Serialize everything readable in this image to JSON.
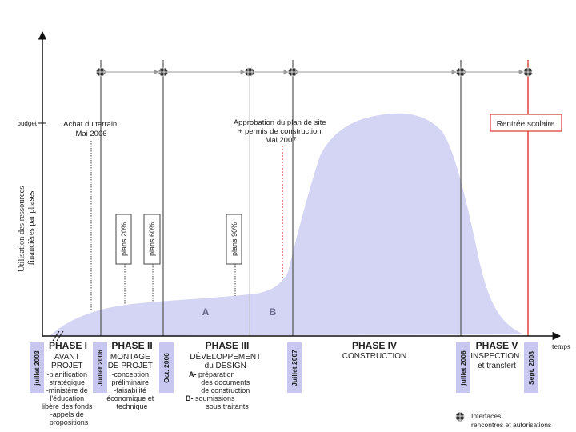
{
  "axes": {
    "y_label_line1": "Utilisation des ressources",
    "y_label_line2": "financières par phases",
    "x_label": "temps",
    "budget_label": "budget"
  },
  "milestones": [
    {
      "label": "juillet 2003"
    },
    {
      "label": "Juillet 2006"
    },
    {
      "label": "Oct. 2006"
    },
    {
      "label": "Juillet 2007"
    },
    {
      "label": "juillet 2008"
    },
    {
      "label": "Sept. 2008"
    }
  ],
  "phases": [
    {
      "title": "PHASE I",
      "lines": [
        "AVANT",
        "PROJET",
        "-planification",
        "stratégique",
        "-ministère de",
        "l'éducation",
        "libère des fonds",
        "-appels de",
        "propositions"
      ]
    },
    {
      "title": "PHASE II",
      "lines": [
        "MONTAGE",
        "DE PROJET",
        "-conception",
        "préliminaire",
        "-faisabilité",
        "économique et",
        "technique"
      ]
    },
    {
      "title": "PHASE III",
      "lines": [
        "DÉVELOPPEMENT",
        "du DESIGN"
      ],
      "detail_a_key": "A-",
      "detail_a": [
        " préparation",
        "des documents",
        "de construction"
      ],
      "detail_b_key": "B-",
      "detail_b": [
        " soumissions",
        "sous traitants"
      ]
    },
    {
      "title": "PHASE IV",
      "lines": [
        "CONSTRUCTION"
      ]
    },
    {
      "title": "PHASE V",
      "lines": [
        "INSPECTION",
        "et transfert"
      ]
    }
  ],
  "annotations": {
    "land_purchase": [
      "Achat du terrain",
      "Mai 2006"
    ],
    "site_plan_approval": [
      "Approbation du plan de site",
      "+ permis de construction",
      "Mai 2007"
    ],
    "school_start": "Rentrée scolaire",
    "plans": [
      "plans 20%",
      "plans 60%",
      "plans 90%"
    ],
    "area_a": "A",
    "area_b": "B"
  },
  "legend": {
    "line1": "Interfaces:",
    "line2": "rencontres et autorisations"
  },
  "colors": {
    "area_fill": "#d4d4f4",
    "date_box": "#c7c7ef",
    "red": "#d33",
    "axis": "#111"
  }
}
